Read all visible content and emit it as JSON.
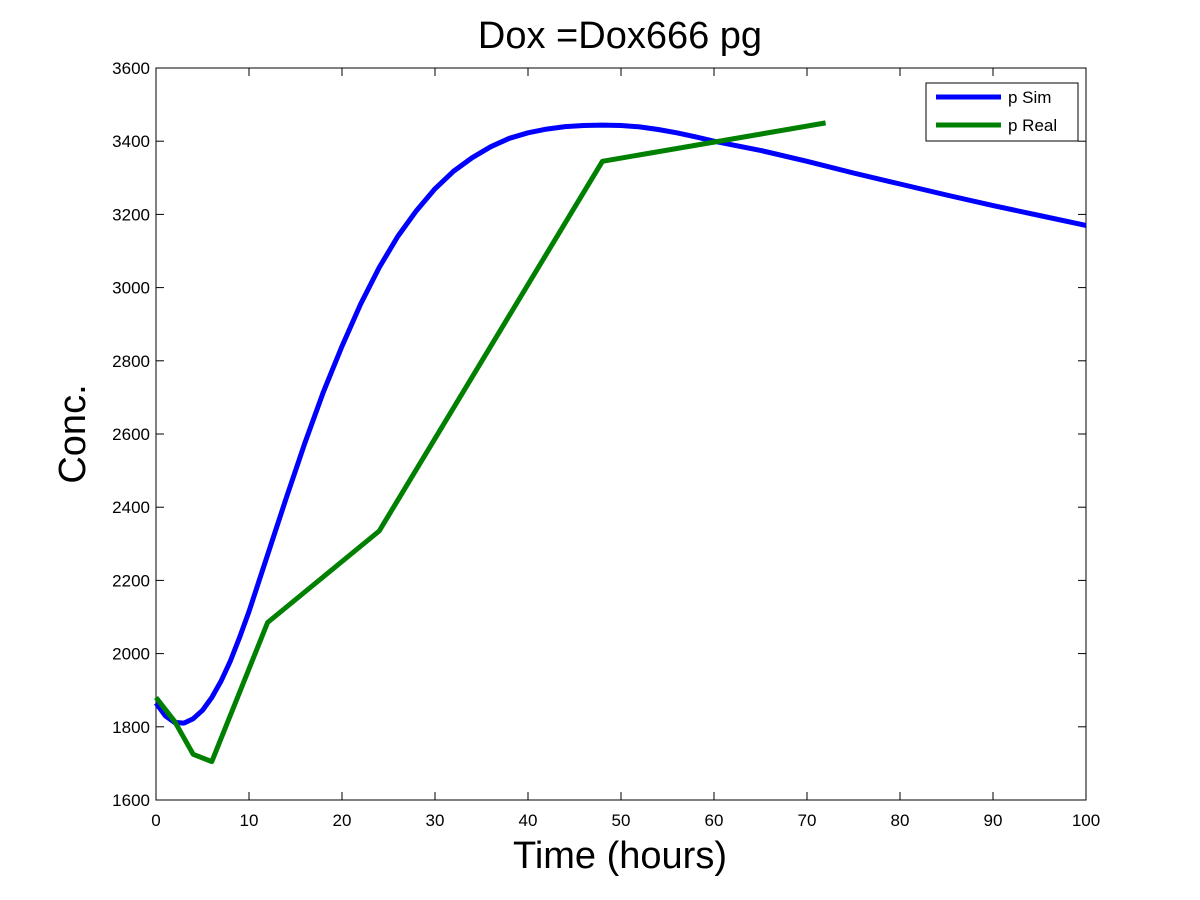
{
  "chart_data": {
    "type": "line",
    "title": "Dox =Dox666 pg",
    "xlabel": "Time (hours)",
    "ylabel": "Conc.",
    "xlim": [
      0,
      100
    ],
    "ylim": [
      1600,
      3600
    ],
    "xticks": [
      0,
      10,
      20,
      30,
      40,
      50,
      60,
      70,
      80,
      90,
      100
    ],
    "yticks": [
      1600,
      1800,
      2000,
      2200,
      2400,
      2600,
      2800,
      3000,
      3200,
      3400,
      3600
    ],
    "grid": false,
    "legend_position": "top-right",
    "series": [
      {
        "name": "p Sim",
        "color": "#0000ff",
        "x": [
          0,
          1,
          2,
          3,
          4,
          5,
          6,
          7,
          8,
          9,
          10,
          12,
          14,
          16,
          18,
          20,
          22,
          24,
          26,
          28,
          30,
          32,
          34,
          36,
          38,
          40,
          42,
          44,
          46,
          48,
          50,
          52,
          54,
          56,
          58,
          60,
          62,
          65,
          70,
          75,
          80,
          85,
          90,
          95,
          100
        ],
        "y": [
          1865,
          1830,
          1812,
          1810,
          1822,
          1845,
          1880,
          1925,
          1980,
          2045,
          2115,
          2270,
          2425,
          2575,
          2715,
          2840,
          2955,
          3055,
          3140,
          3210,
          3270,
          3318,
          3355,
          3385,
          3408,
          3423,
          3433,
          3440,
          3443,
          3444,
          3443,
          3439,
          3432,
          3423,
          3412,
          3400,
          3390,
          3375,
          3345,
          3313,
          3283,
          3253,
          3224,
          3197,
          3170
        ]
      },
      {
        "name": "p Real",
        "color": "#008000",
        "x": [
          0,
          2,
          4,
          6,
          12,
          24,
          48,
          72
        ],
        "y": [
          1880,
          1815,
          1725,
          1705,
          2085,
          2335,
          3345,
          3450
        ]
      }
    ]
  }
}
